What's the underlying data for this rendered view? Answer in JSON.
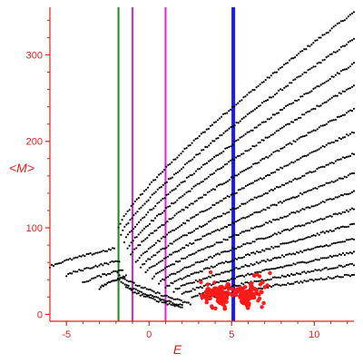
{
  "chart_data": {
    "type": "scatter",
    "title": "",
    "xlabel": "E",
    "ylabel": "<M>",
    "xlim": [
      -6.0,
      12.4
    ],
    "ylim": [
      -8,
      355
    ],
    "grid": false,
    "legend": "none",
    "x_ticks": [
      -5,
      0,
      5,
      10
    ],
    "x_tick_labels": [
      "-5",
      "0",
      "5",
      "10"
    ],
    "y_ticks": [
      0,
      100,
      200,
      300
    ],
    "y_tick_labels": [
      "0",
      "100",
      "200",
      "300"
    ],
    "colors": {
      "axis": "#e8201a",
      "points": "#000000",
      "highlight": "#ff1a1a",
      "green_line": "#1a8a1a",
      "magenta_line": "#e020e0",
      "blue_line": "#1a1aff"
    },
    "vertical_lines": [
      {
        "x": -1.85,
        "color": "#1a8a1a",
        "width": 2
      },
      {
        "x": -1.0,
        "color": "#e020e0",
        "width": 2
      },
      {
        "x": 1.0,
        "color": "#e020e0",
        "width": 2
      },
      {
        "x": 5.1,
        "color": "#1a1aff",
        "width": 4
      }
    ],
    "series": [
      {
        "color": "#000000",
        "x_start": -1.85,
        "x_end": 12.4,
        "y_start": 100,
        "y_end": 349
      },
      {
        "color": "#000000",
        "x_start": -1.7,
        "x_end": 12.4,
        "y_start": 92,
        "y_end": 318
      },
      {
        "color": "#000000",
        "x_start": -1.5,
        "x_end": 12.4,
        "y_start": 84,
        "y_end": 290
      },
      {
        "color": "#000000",
        "x_start": -1.3,
        "x_end": 12.4,
        "y_start": 76,
        "y_end": 265
      },
      {
        "color": "#000000",
        "x_start": -1.1,
        "x_end": 12.4,
        "y_start": 68,
        "y_end": 237
      },
      {
        "color": "#000000",
        "x_start": -0.8,
        "x_end": 12.4,
        "y_start": 60,
        "y_end": 211
      },
      {
        "color": "#000000",
        "x_start": -0.5,
        "x_end": 12.4,
        "y_start": 54,
        "y_end": 186
      },
      {
        "color": "#000000",
        "x_start": -0.2,
        "x_end": 12.4,
        "y_start": 48,
        "y_end": 163
      },
      {
        "color": "#000000",
        "x_start": 0.2,
        "x_end": 12.4,
        "y_start": 42,
        "y_end": 142
      },
      {
        "color": "#000000",
        "x_start": 0.6,
        "x_end": 12.4,
        "y_start": 36,
        "y_end": 122
      },
      {
        "color": "#000000",
        "x_start": 1.0,
        "x_end": 12.4,
        "y_start": 31,
        "y_end": 104
      },
      {
        "color": "#000000",
        "x_start": 1.5,
        "x_end": 12.4,
        "y_start": 27,
        "y_end": 87
      },
      {
        "color": "#000000",
        "x_start": 2.0,
        "x_end": 12.4,
        "y_start": 23,
        "y_end": 72
      },
      {
        "color": "#000000",
        "x_start": 2.6,
        "x_end": 12.4,
        "y_start": 20,
        "y_end": 58
      },
      {
        "color": "#000000",
        "x_start": 3.2,
        "x_end": 12.4,
        "y_start": 17,
        "y_end": 46
      },
      {
        "color": "#000000",
        "x_start": -6.0,
        "x_end": -2.1,
        "y_start": 55,
        "y_end": 76
      },
      {
        "color": "#000000",
        "x_start": -5.0,
        "x_end": -1.8,
        "y_start": 45,
        "y_end": 62
      },
      {
        "color": "#000000",
        "x_start": -4.0,
        "x_end": -1.6,
        "y_start": 36,
        "y_end": 52
      },
      {
        "color": "#000000",
        "x_start": -3.0,
        "x_end": -1.4,
        "y_start": 30,
        "y_end": 45
      },
      {
        "color": "#000000",
        "x_start": -1.9,
        "x_end": 2.5,
        "y_start": 48,
        "y_end": 12
      },
      {
        "color": "#000000",
        "x_start": -1.8,
        "x_end": 2.0,
        "y_start": 40,
        "y_end": 10
      },
      {
        "color": "#000000",
        "x_start": -1.4,
        "x_end": 2.0,
        "y_start": 32,
        "y_end": 8
      }
    ],
    "clusters": [
      {
        "color": "#ff1a1a",
        "center_x": 4.4,
        "center_y": 22,
        "spread_x": 0.45,
        "spread_y": 10,
        "count": 140
      },
      {
        "color": "#ff1a1a",
        "center_x": 5.8,
        "center_y": 22,
        "spread_x": 0.45,
        "spread_y": 10,
        "count": 130
      },
      {
        "color": "#ff1a1a",
        "center_x": 3.6,
        "center_y": 30,
        "spread_x": 0.7,
        "spread_y": 18,
        "count": 25
      },
      {
        "color": "#ff1a1a",
        "center_x": 6.6,
        "center_y": 30,
        "spread_x": 0.7,
        "spread_y": 18,
        "count": 25
      }
    ]
  }
}
